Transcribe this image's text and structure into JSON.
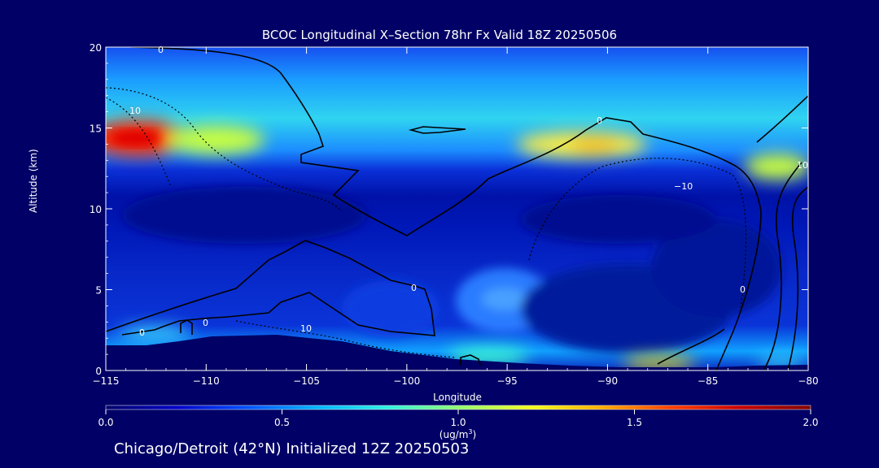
{
  "chart_data": {
    "type": "heatmap",
    "title": "BCOC Longitudinal X–Section 78hr  Fx Valid 18Z 20250506",
    "xlabel": "Longitude",
    "ylabel": "Altitude (km)",
    "xlim": [
      -115,
      -80
    ],
    "ylim": [
      0,
      20
    ],
    "xticks": [
      -115,
      -110,
      -105,
      -100,
      -95,
      -90,
      -85,
      -80
    ],
    "xtick_labels": [
      "−115",
      "−110",
      "−105",
      "−100",
      "−95",
      "−90",
      "−85",
      "−80"
    ],
    "yticks": [
      0,
      5,
      10,
      15,
      20
    ],
    "ytick_labels": [
      "0",
      "5",
      "10",
      "15",
      "20"
    ],
    "colorbar": {
      "min": 0.0,
      "max": 2.0,
      "ticks": [
        0.0,
        0.5,
        1.0,
        1.5,
        2.0
      ],
      "tick_labels": [
        "0.0",
        "0.5",
        "1.0",
        "1.5",
        "2.0"
      ],
      "units_line1": "(ug/m",
      "units_sup": "3",
      "units_line2": ")",
      "colors": [
        "#00006a",
        "#0000c8",
        "#0050ff",
        "#00b4ff",
        "#30f0e0",
        "#90ff70",
        "#f0ff20",
        "#ffb000",
        "#ff4000",
        "#c80000",
        "#800000"
      ]
    },
    "features": [
      {
        "name": "upper-tropospheric band",
        "lon": [
          -115,
          -80
        ],
        "alt": [
          12.5,
          15.5
        ],
        "value": 0.9
      },
      {
        "name": "maximum near 14 km",
        "lon": -114,
        "alt": 14.3,
        "value": 1.9
      },
      {
        "name": "secondary maximum",
        "lon": -91,
        "alt": 13.8,
        "value": 1.5
      },
      {
        "name": "surface maximum",
        "lon": -88,
        "alt": 0.3,
        "value": 1.4
      }
    ],
    "contour_labels": [
      "0",
      "10",
      "−10"
    ]
  },
  "footer": "Chicago/Detroit (42°N) Initialized 12Z 20250503"
}
